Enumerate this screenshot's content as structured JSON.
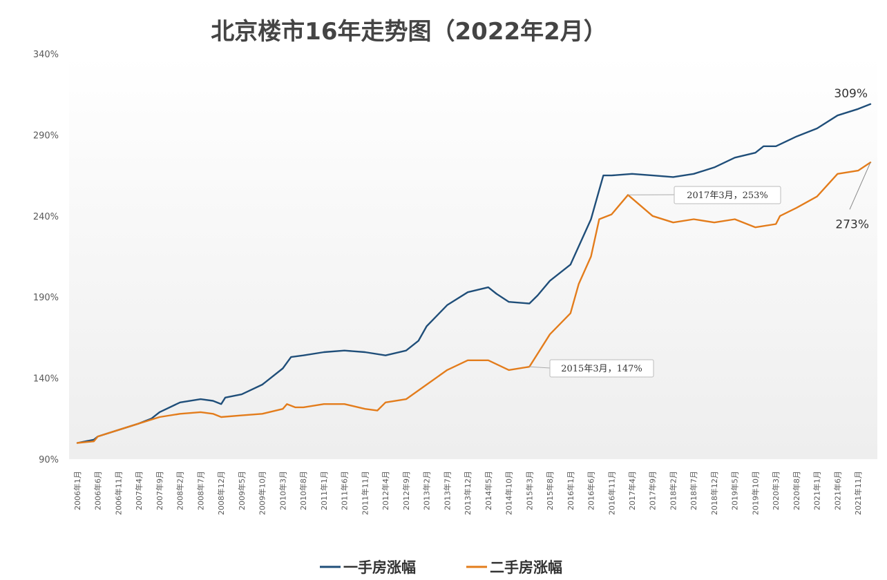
{
  "chart_data": {
    "type": "line",
    "title": "北京楼市16年走势图（2022年2月）",
    "ylim": [
      90,
      340
    ],
    "yticks": [
      "90%",
      "140%",
      "190%",
      "240%",
      "290%",
      "340%"
    ],
    "ytick_values": [
      90,
      140,
      190,
      240,
      290,
      340
    ],
    "x_start": "2006年1月",
    "x_end": "2022年2月",
    "xtick_labels": [
      "2006年1月",
      "2006年6月",
      "2006年11月",
      "2007年4月",
      "2007年9月",
      "2008年2月",
      "2008年7月",
      "2008年12月",
      "2009年5月",
      "2009年10月",
      "2010年3月",
      "2010年8月",
      "2011年1月",
      "2011年6月",
      "2011年11月",
      "2012年4月",
      "2012年9月",
      "2013年2月",
      "2013年7月",
      "2013年12月",
      "2014年5月",
      "2014年10月",
      "2015年3月",
      "2015年8月",
      "2016年1月",
      "2016年6月",
      "2016年11月",
      "2017年4月",
      "2017年9月",
      "2018年2月",
      "2018年7月",
      "2018年12月",
      "2019年5月",
      "2019年10月",
      "2020年3月",
      "2020年8月",
      "2021年1月",
      "2021年6月",
      "2021年11月"
    ],
    "grid": false,
    "legend_position": "bottom-center",
    "series": [
      {
        "name": "一手房涨幅",
        "color": "#1f4e79",
        "points": [
          [
            "2006-01",
            100
          ],
          [
            "2006-05",
            102
          ],
          [
            "2006-06",
            104
          ],
          [
            "2006-11",
            108
          ],
          [
            "2007-04",
            112
          ],
          [
            "2007-07",
            115
          ],
          [
            "2007-09",
            119
          ],
          [
            "2008-02",
            125
          ],
          [
            "2008-07",
            127
          ],
          [
            "2008-10",
            126
          ],
          [
            "2008-12",
            124
          ],
          [
            "2009-01",
            128
          ],
          [
            "2009-05",
            130
          ],
          [
            "2009-10",
            136
          ],
          [
            "2010-03",
            146
          ],
          [
            "2010-05",
            153
          ],
          [
            "2010-08",
            154
          ],
          [
            "2011-01",
            156
          ],
          [
            "2011-06",
            157
          ],
          [
            "2011-11",
            156
          ],
          [
            "2012-04",
            154
          ],
          [
            "2012-09",
            157
          ],
          [
            "2012-12",
            163
          ],
          [
            "2013-02",
            172
          ],
          [
            "2013-07",
            185
          ],
          [
            "2013-12",
            193
          ],
          [
            "2014-05",
            196
          ],
          [
            "2014-07",
            192
          ],
          [
            "2014-10",
            187
          ],
          [
            "2015-03",
            186
          ],
          [
            "2015-05",
            191
          ],
          [
            "2015-08",
            200
          ],
          [
            "2016-01",
            210
          ],
          [
            "2016-06",
            238
          ],
          [
            "2016-08",
            256
          ],
          [
            "2016-09",
            265
          ],
          [
            "2016-11",
            265
          ],
          [
            "2017-04",
            266
          ],
          [
            "2017-09",
            265
          ],
          [
            "2018-02",
            264
          ],
          [
            "2018-07",
            266
          ],
          [
            "2018-12",
            270
          ],
          [
            "2019-05",
            276
          ],
          [
            "2019-10",
            279
          ],
          [
            "2019-12",
            283
          ],
          [
            "2020-03",
            283
          ],
          [
            "2020-08",
            289
          ],
          [
            "2021-01",
            294
          ],
          [
            "2021-06",
            302
          ],
          [
            "2021-11",
            306
          ],
          [
            "2022-02",
            309
          ]
        ]
      },
      {
        "name": "二手房涨幅",
        "color": "#e37c1b",
        "points": [
          [
            "2006-01",
            100
          ],
          [
            "2006-05",
            101
          ],
          [
            "2006-06",
            104
          ],
          [
            "2006-11",
            108
          ],
          [
            "2007-04",
            112
          ],
          [
            "2007-09",
            116
          ],
          [
            "2008-02",
            118
          ],
          [
            "2008-07",
            119
          ],
          [
            "2008-10",
            118
          ],
          [
            "2008-12",
            116
          ],
          [
            "2009-05",
            117
          ],
          [
            "2009-10",
            118
          ],
          [
            "2010-03",
            121
          ],
          [
            "2010-04",
            124
          ],
          [
            "2010-06",
            122
          ],
          [
            "2010-08",
            122
          ],
          [
            "2011-01",
            124
          ],
          [
            "2011-06",
            124
          ],
          [
            "2011-11",
            121
          ],
          [
            "2012-02",
            120
          ],
          [
            "2012-04",
            125
          ],
          [
            "2012-09",
            127
          ],
          [
            "2013-02",
            136
          ],
          [
            "2013-07",
            145
          ],
          [
            "2013-12",
            151
          ],
          [
            "2014-05",
            151
          ],
          [
            "2014-10",
            145
          ],
          [
            "2015-03",
            147
          ],
          [
            "2015-08",
            167
          ],
          [
            "2016-01",
            180
          ],
          [
            "2016-03",
            198
          ],
          [
            "2016-06",
            215
          ],
          [
            "2016-08",
            238
          ],
          [
            "2016-11",
            241
          ],
          [
            "2017-03",
            253
          ],
          [
            "2017-09",
            240
          ],
          [
            "2018-02",
            236
          ],
          [
            "2018-07",
            238
          ],
          [
            "2018-12",
            236
          ],
          [
            "2019-05",
            238
          ],
          [
            "2019-10",
            233
          ],
          [
            "2020-03",
            235
          ],
          [
            "2020-04",
            240
          ],
          [
            "2020-08",
            245
          ],
          [
            "2021-01",
            252
          ],
          [
            "2021-06",
            266
          ],
          [
            "2021-11",
            268
          ],
          [
            "2022-02",
            273
          ]
        ]
      }
    ],
    "annotations": [
      {
        "text": "309%",
        "series": "一手房涨幅",
        "at": "2022-02",
        "value": 309
      },
      {
        "text": "273%",
        "series": "二手房涨幅",
        "at": "2022-02",
        "value": 273
      },
      {
        "text": "2015年3月，147%",
        "series": "二手房涨幅",
        "at": "2015-03",
        "value": 147
      },
      {
        "text": "2017年3月，253%",
        "series": "二手房涨幅",
        "at": "2017-03",
        "value": 253
      }
    ]
  }
}
